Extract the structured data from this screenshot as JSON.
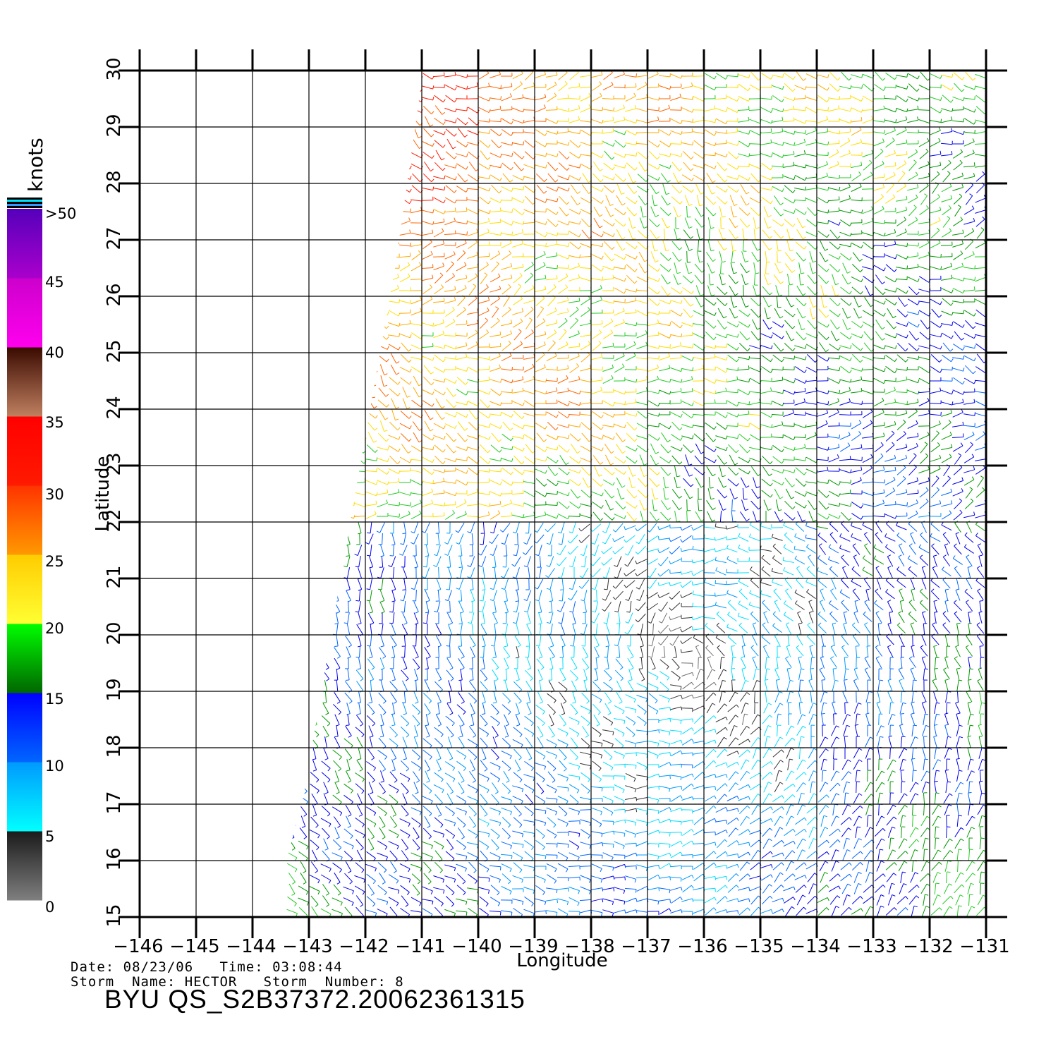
{
  "map": {
    "projection": "lat/lon grid",
    "lon_range": [
      -146,
      -131
    ],
    "lat_range": [
      15,
      30
    ],
    "xlabel": "Longitude",
    "ylabel": "Latitude",
    "lon_ticks": [
      "-146",
      "-145",
      "-144",
      "-143",
      "-142",
      "-141",
      "-140",
      "-139",
      "-138",
      "-137",
      "-136",
      "-135",
      "-134",
      "-133",
      "-132",
      "-131"
    ],
    "lat_ticks": [
      "15",
      "16",
      "17",
      "18",
      "19",
      "20",
      "21",
      "22",
      "23",
      "24",
      "25",
      "26",
      "27",
      "28",
      "29",
      "30"
    ],
    "grid": true,
    "layer": "QuikSCAT wind barbs (vectors colored by wind speed)"
  },
  "colorbar": {
    "title": "knots",
    "labels": [
      ">50",
      "45",
      "40",
      "35",
      "30",
      "25",
      "20",
      "15",
      "10",
      "5",
      "0"
    ],
    "bands": [
      {
        "from": 0,
        "to": 5,
        "colors": [
          "#7f7f7f",
          "#1a1a1a"
        ]
      },
      {
        "from": 5,
        "to": 10,
        "colors": [
          "#00ffff",
          "#0099ff"
        ]
      },
      {
        "from": 10,
        "to": 15,
        "colors": [
          "#0066ff",
          "#0000ff"
        ]
      },
      {
        "from": 15,
        "to": 20,
        "colors": [
          "#006600",
          "#00ff00"
        ]
      },
      {
        "from": 20,
        "to": 25,
        "colors": [
          "#ffff33",
          "#ffcc00"
        ]
      },
      {
        "from": 25,
        "to": 30,
        "colors": [
          "#ff9900",
          "#ff3300"
        ]
      },
      {
        "from": 30,
        "to": 35,
        "colors": [
          "#ff1a00",
          "#ff0000"
        ]
      },
      {
        "from": 35,
        "to": 40,
        "colors": [
          "#c08060",
          "#3a0a00"
        ]
      },
      {
        "from": 40,
        "to": 45,
        "colors": [
          "#ff00ee",
          "#cc00cc"
        ]
      },
      {
        "from": 45,
        "to": 50,
        "colors": [
          "#aa00cc",
          "#5500bb"
        ]
      }
    ]
  },
  "footer": {
    "date_line": "Date: 08/23/06   Time: 03:08:44",
    "storm_line": "Storm  Name: HECTOR   Storm  Number: 8",
    "id": "BYU  QS_S2B37372.20062361315"
  }
}
